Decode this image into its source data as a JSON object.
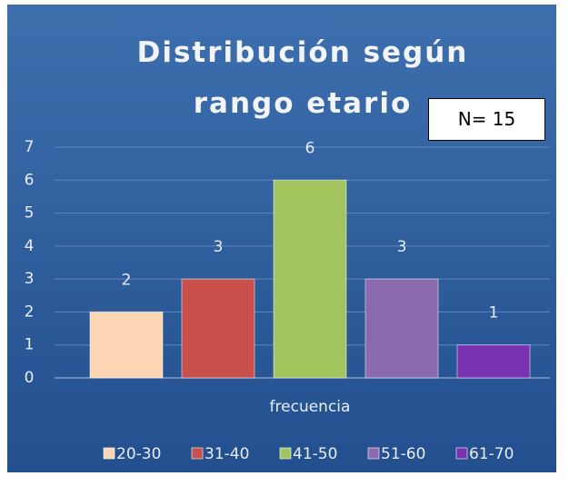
{
  "chart_data": {
    "type": "bar",
    "title": "Distribución según rango etario",
    "annotation": "N= 15",
    "categories": [
      "frecuencia"
    ],
    "series": [
      {
        "name": "20-30",
        "color": "#fcd6b4",
        "values": [
          2
        ]
      },
      {
        "name": "31-40",
        "color": "#c9504c",
        "values": [
          3
        ]
      },
      {
        "name": "41-50",
        "color": "#a3c45c",
        "values": [
          6
        ]
      },
      {
        "name": "51-60",
        "color": "#8c6ab0",
        "values": [
          3
        ]
      },
      {
        "name": "61-70",
        "color": "#7a33b0",
        "values": [
          1
        ]
      }
    ],
    "ylim": [
      0,
      7
    ],
    "yticks": [
      0,
      1,
      2,
      3,
      4,
      5,
      6,
      7
    ],
    "grid": true,
    "legend": "bottom"
  }
}
